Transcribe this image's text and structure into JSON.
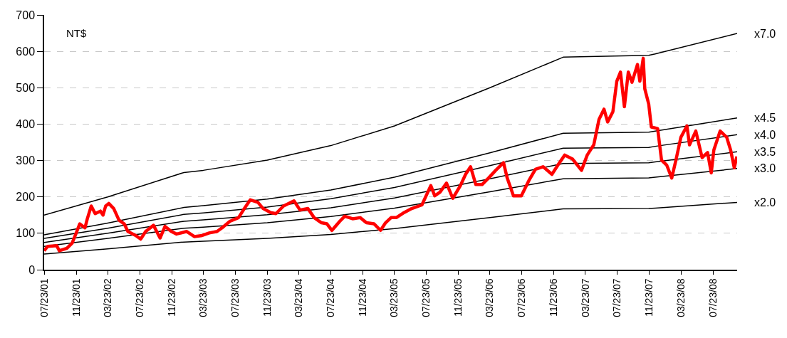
{
  "chart_data": {
    "type": "line",
    "annotations": [
      "NT$"
    ],
    "xlim": [
      "2001-07-23",
      "2008-10-23"
    ],
    "xticks": [
      {
        "value": "2001-07-23",
        "label": "07/23/01"
      },
      {
        "value": "2001-11-23",
        "label": "11/23/01"
      },
      {
        "value": "2002-03-23",
        "label": "03/23/02"
      },
      {
        "value": "2002-07-23",
        "label": "07/23/02"
      },
      {
        "value": "2002-11-23",
        "label": "11/23/02"
      },
      {
        "value": "2003-03-23",
        "label": "03/23/03"
      },
      {
        "value": "2003-07-23",
        "label": "07/23/03"
      },
      {
        "value": "2003-11-23",
        "label": "11/23/03"
      },
      {
        "value": "2004-03-23",
        "label": "03/23/04"
      },
      {
        "value": "2004-07-23",
        "label": "07/23/04"
      },
      {
        "value": "2004-11-23",
        "label": "11/23/04"
      },
      {
        "value": "2005-03-23",
        "label": "03/23/05"
      },
      {
        "value": "2005-07-23",
        "label": "07/23/05"
      },
      {
        "value": "2005-11-23",
        "label": "11/23/05"
      },
      {
        "value": "2006-03-23",
        "label": "03/23/06"
      },
      {
        "value": "2006-07-23",
        "label": "07/23/06"
      },
      {
        "value": "2006-11-23",
        "label": "11/23/06"
      },
      {
        "value": "2007-03-23",
        "label": "03/23/07"
      },
      {
        "value": "2007-07-23",
        "label": "07/23/07"
      },
      {
        "value": "2007-11-23",
        "label": "11/23/07"
      },
      {
        "value": "2008-03-23",
        "label": "03/23/08"
      },
      {
        "value": "2008-07-23",
        "label": "07/23/08"
      }
    ],
    "ylim": [
      0,
      700
    ],
    "yticks": [
      0,
      100,
      200,
      300,
      400,
      500,
      600,
      700
    ],
    "grid": "y",
    "legend": false,
    "marker": "none",
    "line_style": "solid",
    "x": [
      "2001-07-23",
      "2002-03-23",
      "2003-01-08",
      "2003-03-23",
      "2003-11-23",
      "2004-07-23",
      "2005-03-23",
      "2006-03-23",
      "2006-12-28",
      "2007-11-20",
      "2007-12-15",
      "2008-10-23"
    ],
    "series": [
      {
        "name": "x7.0",
        "color": "#000000",
        "values": [
          150,
          200,
          267,
          273,
          301,
          341,
          395,
          500,
          584,
          589,
          593,
          649
        ]
      },
      {
        "name": "x4.5",
        "color": "#000000",
        "values": [
          96,
          128,
          171,
          176,
          194,
          219,
          254,
          321,
          375,
          378,
          381,
          417
        ]
      },
      {
        "name": "x4.0",
        "color": "#000000",
        "values": [
          86,
          114,
          152,
          156,
          172,
          195,
          226,
          286,
          334,
          336,
          339,
          371
        ]
      },
      {
        "name": "x3.5",
        "color": "#000000",
        "values": [
          75,
          100,
          133,
          137,
          151,
          170,
          197,
          250,
          292,
          294,
          296,
          324
        ]
      },
      {
        "name": "x3.0",
        "color": "#000000",
        "values": [
          64,
          86,
          114,
          117,
          129,
          146,
          169,
          214,
          250,
          252,
          254,
          278
        ]
      },
      {
        "name": "x2.0",
        "color": "#000000",
        "values": [
          43,
          57,
          76,
          78,
          86,
          97,
          113,
          143,
          167,
          168,
          169,
          185
        ]
      },
      {
        "color": "#ff0000",
        "x": [
          "2001-07-23",
          "2001-08-05",
          "2001-09-09",
          "2001-09-19",
          "2001-10-18",
          "2001-11-07",
          "2001-11-21",
          "2001-12-06",
          "2001-12-26",
          "2002-01-04",
          "2002-01-19",
          "2002-02-03",
          "2002-02-23",
          "2002-03-05",
          "2002-03-15",
          "2002-03-27",
          "2002-04-15",
          "2002-05-05",
          "2002-05-25",
          "2002-06-08",
          "2002-07-08",
          "2002-07-27",
          "2002-08-15",
          "2002-09-14",
          "2002-10-09",
          "2002-10-28",
          "2002-11-21",
          "2002-12-11",
          "2003-01-19",
          "2003-02-17",
          "2003-03-19",
          "2003-04-15",
          "2003-05-15",
          "2003-06-03",
          "2003-07-03",
          "2003-08-05",
          "2003-08-30",
          "2003-09-19",
          "2003-10-18",
          "2003-11-07",
          "2003-12-06",
          "2003-12-26",
          "2004-01-24",
          "2004-03-04",
          "2004-03-27",
          "2004-04-26",
          "2004-05-20",
          "2004-06-17",
          "2004-07-08",
          "2004-07-27",
          "2004-08-26",
          "2004-09-14",
          "2004-10-14",
          "2004-11-12",
          "2004-12-06",
          "2005-01-04",
          "2005-01-29",
          "2005-02-17",
          "2005-03-10",
          "2005-03-30",
          "2005-04-29",
          "2005-05-28",
          "2005-07-06",
          "2005-08-09",
          "2005-08-24",
          "2005-09-13",
          "2005-10-08",
          "2005-11-01",
          "2005-11-30",
          "2005-12-20",
          "2006-01-08",
          "2006-01-28",
          "2006-02-21",
          "2006-03-18",
          "2006-04-14",
          "2006-05-14",
          "2006-05-28",
          "2006-06-21",
          "2006-07-21",
          "2006-08-19",
          "2006-09-13",
          "2006-10-12",
          "2006-11-15",
          "2006-12-10",
          "2007-01-03",
          "2007-02-02",
          "2007-03-08",
          "2007-03-30",
          "2007-04-24",
          "2007-05-14",
          "2007-06-02",
          "2007-06-16",
          "2007-07-06",
          "2007-07-21",
          "2007-08-04",
          "2007-08-19",
          "2007-09-03",
          "2007-09-17",
          "2007-10-08",
          "2007-10-17",
          "2007-10-30",
          "2007-11-05",
          "2007-11-20",
          "2007-11-30",
          "2007-12-24",
          "2008-01-08",
          "2008-01-28",
          "2008-02-16",
          "2008-03-03",
          "2008-03-22",
          "2008-04-14",
          "2008-04-24",
          "2008-05-18",
          "2008-06-11",
          "2008-07-02",
          "2008-07-16",
          "2008-07-26",
          "2008-08-19",
          "2008-09-13",
          "2008-09-28",
          "2008-10-12",
          "2008-10-22"
        ],
        "values": [
          52,
          64,
          66,
          52,
          59,
          73,
          98,
          126,
          115,
          140,
          175,
          154,
          161,
          150,
          175,
          182,
          168,
          136,
          126,
          105,
          94,
          84,
          105,
          122,
          87,
          119,
          105,
          98,
          105,
          91,
          94,
          101,
          105,
          115,
          133,
          143,
          171,
          192,
          185,
          168,
          157,
          154,
          175,
          189,
          164,
          168,
          143,
          129,
          126,
          108,
          133,
          147,
          140,
          143,
          129,
          126,
          108,
          129,
          143,
          143,
          157,
          168,
          178,
          231,
          203,
          213,
          238,
          196,
          231,
          262,
          283,
          234,
          234,
          252,
          273,
          294,
          252,
          203,
          203,
          245,
          276,
          283,
          262,
          290,
          315,
          304,
          273,
          315,
          343,
          413,
          441,
          406,
          434,
          518,
          543,
          448,
          543,
          515,
          564,
          518,
          581,
          497,
          455,
          392,
          388,
          301,
          287,
          252,
          301,
          364,
          395,
          343,
          381,
          308,
          322,
          266,
          329,
          381,
          364,
          329,
          280,
          311
        ]
      }
    ]
  }
}
